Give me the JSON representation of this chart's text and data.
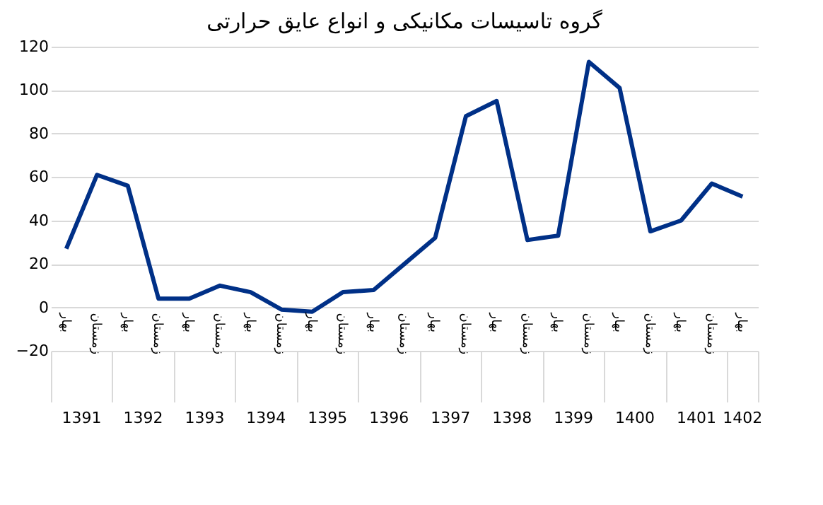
{
  "chart_data": {
    "type": "line",
    "title": "گروه تاسیسات مکانیکی و انواع عایق حرارتی",
    "categories": [
      "بهار",
      "زمستان",
      "بهار",
      "زمستان",
      "بهار",
      "زمستان",
      "بهار",
      "زمستان",
      "بهار",
      "زمستان",
      "بهار",
      "زمستان",
      "بهار",
      "زمستان",
      "بهار",
      "زمستان",
      "بهار",
      "زمستان",
      "بهار",
      "زمستان",
      "بهار",
      "زمستان",
      "بهار"
    ],
    "series": [
      {
        "color": "#003087",
        "values": [
          27,
          61,
          56,
          4,
          4,
          10,
          7,
          -1,
          -2,
          7,
          8,
          20,
          32,
          88,
          95,
          31,
          33,
          113,
          101,
          35,
          40,
          57,
          51
        ]
      }
    ],
    "annotations": [
      "1391",
      "1392",
      "1393",
      "1394",
      "1395",
      "1396",
      "1397",
      "1398",
      "1399",
      "1400",
      "1401",
      "1402"
    ],
    "ylim": [
      -20,
      120
    ],
    "yticks": [
      -20,
      0,
      20,
      40,
      60,
      80,
      100,
      120
    ],
    "grid": "y",
    "legend": false,
    "marker": "none",
    "line_style": "solid"
  }
}
